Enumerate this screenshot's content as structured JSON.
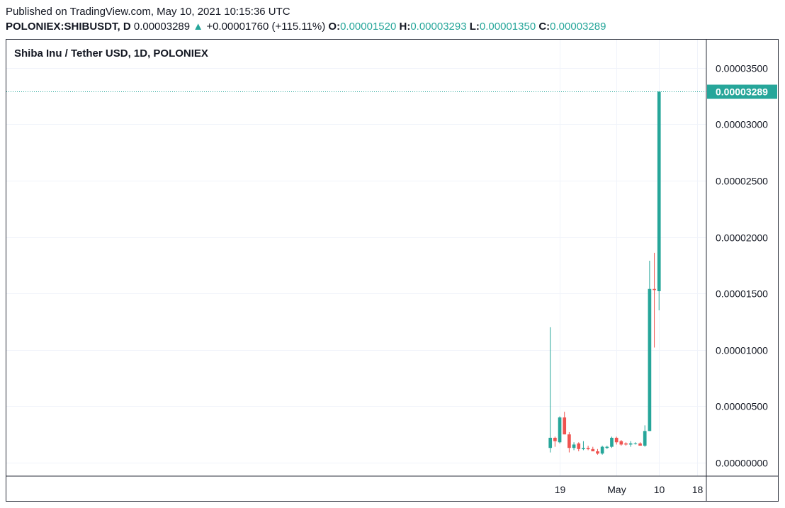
{
  "header": {
    "published": "Published on TradingView.com, May 10, 2021 10:15:36 UTC",
    "symbol": "POLONIEX:SHIBUSDT, D",
    "last": "0.00003289",
    "change": "+0.00001760 (+115.11%)",
    "open_label": "O:",
    "open": "0.00001520",
    "high_label": "H:",
    "high": "0.00003293",
    "low_label": "L:",
    "low": "0.00001350",
    "close_label": "C:",
    "close": "0.00003289"
  },
  "chart_title": "Shiba Inu / Tether USD, 1D, POLONIEX",
  "colors": {
    "up": "#26a69a",
    "down": "#ef5350",
    "grid": "#f0f3fa",
    "border": "#2a2e39"
  },
  "chart_data": {
    "type": "candlestick",
    "title": "Shiba Inu / Tether USD, 1D, POLONIEX",
    "ylim": [
      -1.2e-06,
      3.75e-05
    ],
    "y_ticks": [
      {
        "value": 3.5e-05,
        "label": "0.00003500"
      },
      {
        "value": 3e-05,
        "label": "0.00003000"
      },
      {
        "value": 2.5e-05,
        "label": "0.00002500"
      },
      {
        "value": 2e-05,
        "label": "0.00002000"
      },
      {
        "value": 1.5e-05,
        "label": "0.00001500"
      },
      {
        "value": 1e-05,
        "label": "0.00001000"
      },
      {
        "value": 5e-06,
        "label": "0.00000500"
      },
      {
        "value": 0.0,
        "label": "0.00000000"
      }
    ],
    "x_ticks": [
      {
        "date": "2021-04-19",
        "label": "19"
      },
      {
        "date": "2021-05-01",
        "label": "May"
      },
      {
        "date": "2021-05-10",
        "label": "10"
      },
      {
        "date": "2021-05-18",
        "label": "18"
      }
    ],
    "x_range": [
      "2020-12-23",
      "2021-05-20"
    ],
    "last_price": {
      "value": 3.289e-05,
      "label": "0.00003289"
    },
    "candles": [
      {
        "date": "2021-04-17",
        "o": 1.3e-06,
        "h": 1.2e-05,
        "l": 9e-07,
        "c": 2.2e-06
      },
      {
        "date": "2021-04-18",
        "o": 2.2e-06,
        "h": 2.3e-06,
        "l": 1.4e-06,
        "c": 1.9e-06
      },
      {
        "date": "2021-04-19",
        "o": 1.8e-06,
        "h": 4.1e-06,
        "l": 1.7e-06,
        "c": 4e-06
      },
      {
        "date": "2021-04-20",
        "o": 4e-06,
        "h": 4.5e-06,
        "l": 2.5e-06,
        "c": 2.5e-06
      },
      {
        "date": "2021-04-21",
        "o": 2.5e-06,
        "h": 2.7e-06,
        "l": 9e-07,
        "c": 1.3e-06
      },
      {
        "date": "2021-04-22",
        "o": 1.3e-06,
        "h": 1.8e-06,
        "l": 1.1e-06,
        "c": 1.6e-06
      },
      {
        "date": "2021-04-23",
        "o": 1.7e-06,
        "h": 1.8e-06,
        "l": 1e-06,
        "c": 1.2e-06
      },
      {
        "date": "2021-04-24",
        "o": 1.2e-06,
        "h": 1.9e-06,
        "l": 1.1e-06,
        "c": 1.3e-06
      },
      {
        "date": "2021-04-25",
        "o": 1.3e-06,
        "h": 1.5e-06,
        "l": 1.1e-06,
        "c": 1.2e-06
      },
      {
        "date": "2021-04-26",
        "o": 1.2e-06,
        "h": 1.4e-06,
        "l": 1e-06,
        "c": 1e-06
      },
      {
        "date": "2021-04-27",
        "o": 1e-06,
        "h": 1.2e-06,
        "l": 7e-07,
        "c": 8e-07
      },
      {
        "date": "2021-04-28",
        "o": 8e-07,
        "h": 1.5e-06,
        "l": 7e-07,
        "c": 1.4e-06
      },
      {
        "date": "2021-04-29",
        "o": 1.3e-06,
        "h": 1.5e-06,
        "l": 1.2e-06,
        "c": 1.4e-06
      },
      {
        "date": "2021-04-30",
        "o": 1.4e-06,
        "h": 2.3e-06,
        "l": 1.3e-06,
        "c": 2.2e-06
      },
      {
        "date": "2021-05-01",
        "o": 2.2e-06,
        "h": 2.3e-06,
        "l": 1.6e-06,
        "c": 1.8e-06
      },
      {
        "date": "2021-05-02",
        "o": 1.9e-06,
        "h": 2e-06,
        "l": 1.5e-06,
        "c": 1.6e-06
      },
      {
        "date": "2021-05-03",
        "o": 1.7e-06,
        "h": 1.8e-06,
        "l": 1.5e-06,
        "c": 1.6e-06
      },
      {
        "date": "2021-05-04",
        "o": 1.6e-06,
        "h": 1.9e-06,
        "l": 1.4e-06,
        "c": 1.7e-06
      },
      {
        "date": "2021-05-05",
        "o": 1.7e-06,
        "h": 1.8e-06,
        "l": 1.6e-06,
        "c": 1.7e-06
      },
      {
        "date": "2021-05-06",
        "o": 1.7e-06,
        "h": 1.8e-06,
        "l": 1.5e-06,
        "c": 1.5e-06
      },
      {
        "date": "2021-05-07",
        "o": 1.5e-06,
        "h": 3.3e-06,
        "l": 1.4e-06,
        "c": 2.8e-06
      },
      {
        "date": "2021-05-08",
        "o": 2.8e-06,
        "h": 1.79e-05,
        "l": 2.8e-06,
        "c": 1.54e-05
      },
      {
        "date": "2021-05-09",
        "o": 1.54e-05,
        "h": 1.86e-05,
        "l": 1.02e-05,
        "c": 1.53e-05
      },
      {
        "date": "2021-05-10",
        "o": 1.52e-05,
        "h": 3.293e-05,
        "l": 1.35e-05,
        "c": 3.289e-05
      }
    ]
  }
}
